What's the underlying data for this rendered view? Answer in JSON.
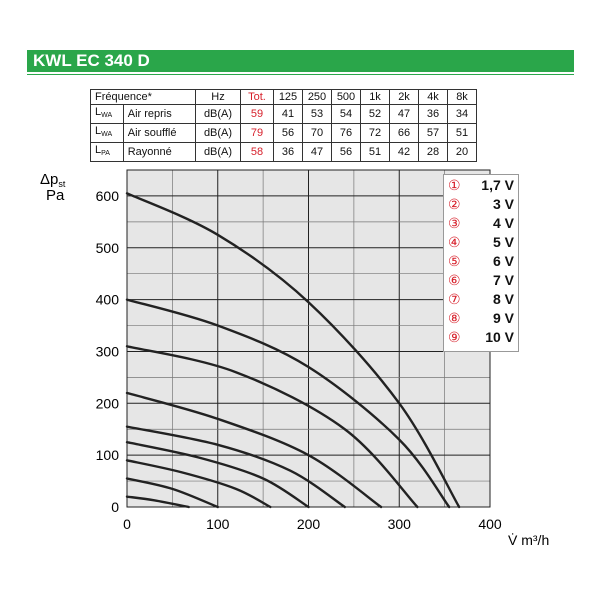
{
  "header": {
    "title": "KWL EC 340 D",
    "color": "#2aa64a"
  },
  "table": {
    "headers": [
      "Fréquence*",
      "Hz",
      "Tot.",
      "125",
      "250",
      "500",
      "1k",
      "2k",
      "4k",
      "8k"
    ],
    "rows": [
      {
        "sym": "L",
        "sub": "WA",
        "name": "Air repris",
        "unit": "dB(A)",
        "tot": "59",
        "values": [
          "41",
          "53",
          "54",
          "52",
          "47",
          "36",
          "34"
        ]
      },
      {
        "sym": "L",
        "sub": "WA",
        "name": "Air soufflé",
        "unit": "dB(A)",
        "tot": "79",
        "values": [
          "56",
          "70",
          "76",
          "72",
          "66",
          "57",
          "51"
        ]
      },
      {
        "sym": "L",
        "sub": "PA",
        "name": "Rayonné",
        "unit": "dB(A)",
        "tot": "58",
        "values": [
          "36",
          "47",
          "56",
          "51",
          "42",
          "28",
          "20"
        ]
      }
    ]
  },
  "chart_data": {
    "type": "line",
    "ylabel_main": "Δp",
    "ylabel_sub": "st",
    "ylabel_unit": "Pa",
    "xlabel": "V̇ m³/h",
    "xlim": [
      0,
      400
    ],
    "ylim": [
      0,
      650
    ],
    "xticks": [
      "0",
      "100",
      "200",
      "300",
      "400"
    ],
    "yticks": [
      "0",
      "100",
      "200",
      "300",
      "400",
      "500",
      "600"
    ],
    "grid": true,
    "legend_position": "top-right",
    "series": [
      {
        "name": "1,7 V",
        "marker": "①",
        "x": [
          0,
          30,
          68
        ],
        "y": [
          20,
          13,
          0
        ]
      },
      {
        "name": "3 V",
        "marker": "②",
        "x": [
          0,
          50,
          100
        ],
        "y": [
          55,
          35,
          0
        ]
      },
      {
        "name": "4 V",
        "marker": "③",
        "x": [
          0,
          60,
          120,
          158
        ],
        "y": [
          90,
          67,
          35,
          0
        ]
      },
      {
        "name": "5 V",
        "marker": "④",
        "x": [
          0,
          80,
          150,
          200
        ],
        "y": [
          125,
          95,
          55,
          0
        ]
      },
      {
        "name": "6 V",
        "marker": "⑤",
        "x": [
          0,
          100,
          180,
          240
        ],
        "y": [
          155,
          120,
          70,
          0
        ]
      },
      {
        "name": "7 V",
        "marker": "⑥",
        "x": [
          0,
          100,
          200,
          280
        ],
        "y": [
          220,
          170,
          100,
          0
        ]
      },
      {
        "name": "8 V",
        "marker": "⑦",
        "x": [
          0,
          120,
          240,
          320
        ],
        "y": [
          310,
          260,
          150,
          0
        ]
      },
      {
        "name": "9 V",
        "marker": "⑧",
        "x": [
          0,
          100,
          200,
          300,
          355
        ],
        "y": [
          400,
          350,
          270,
          130,
          0
        ]
      },
      {
        "name": "10 V",
        "marker": "⑨",
        "x": [
          0,
          100,
          200,
          300,
          366
        ],
        "y": [
          605,
          525,
          395,
          200,
          0
        ]
      }
    ]
  }
}
